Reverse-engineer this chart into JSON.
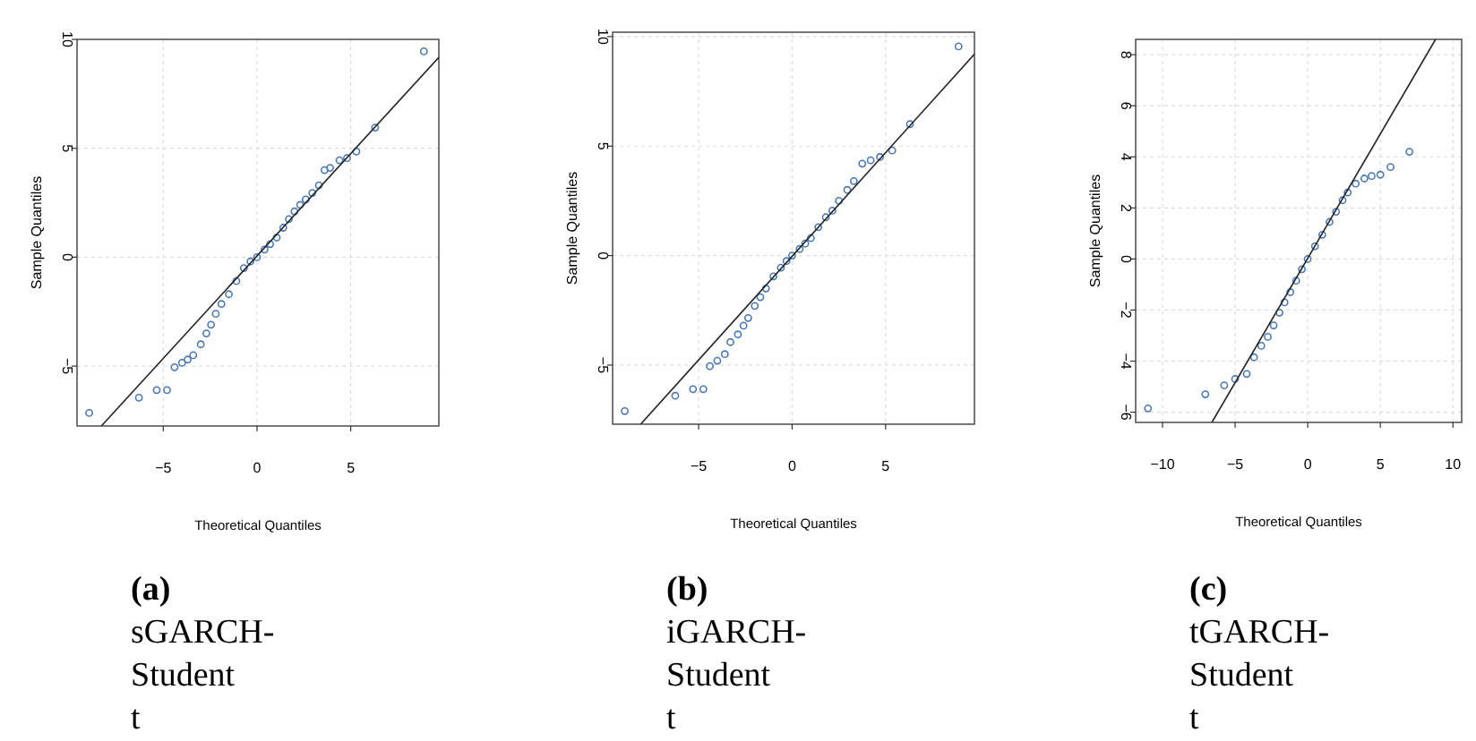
{
  "chart_data": [
    {
      "type": "scatter",
      "title": "(a)",
      "subtitle": "sGARCH-Student t",
      "xlabel": "Theoretical Quantiles",
      "ylabel": "Sample Quantiles",
      "xlim": [
        -9.6,
        9.7
      ],
      "ylim": [
        -7.75,
        10
      ],
      "xticks": [
        -5,
        0,
        5
      ],
      "yticks": [
        -5,
        0,
        5,
        10
      ],
      "grid": true,
      "series": [
        {
          "marker": "circle",
          "color": "#4a78b5",
          "x": [
            -8.95,
            -6.3,
            -5.35,
            -4.8,
            -4.4,
            -4.0,
            -3.7,
            -3.4,
            -3.0,
            -2.7,
            -2.45,
            -2.2,
            -1.9,
            -1.5,
            -1.1,
            -0.7,
            -0.35,
            0,
            0.4,
            0.7,
            1.05,
            1.4,
            1.7,
            2,
            2.3,
            2.6,
            2.95,
            3.3,
            3.6,
            3.9,
            4.4,
            4.8,
            5.3,
            6.3,
            8.9
          ],
          "values": [
            -7.15,
            -6.45,
            -6.1,
            -6.1,
            -5.05,
            -4.85,
            -4.7,
            -4.5,
            -4.0,
            -3.5,
            -3.1,
            -2.6,
            -2.15,
            -1.7,
            -1.1,
            -0.5,
            -0.2,
            0,
            0.35,
            0.6,
            0.9,
            1.35,
            1.75,
            2.1,
            2.4,
            2.65,
            2.95,
            3.3,
            4.0,
            4.1,
            4.45,
            4.55,
            4.85,
            5.95,
            9.45
          ]
        },
        {
          "type": "line",
          "color": "#222222",
          "x": [
            -8.3,
            9.7
          ],
          "values": [
            -7.75,
            9.18
          ]
        }
      ]
    },
    {
      "type": "scatter",
      "title": "(b)",
      "subtitle": "iGARCH-Student t",
      "xlabel": "Theoretical Quantiles",
      "ylabel": "Sample Quantiles",
      "xlim": [
        -9.6,
        9.75
      ],
      "ylim": [
        -7.7,
        10.2
      ],
      "xticks": [
        -5,
        0,
        5
      ],
      "yticks": [
        -5,
        0,
        5,
        10
      ],
      "grid": true,
      "series": [
        {
          "marker": "circle",
          "color": "#4a78b5",
          "x": [
            -8.95,
            -6.25,
            -5.3,
            -4.75,
            -4.4,
            -4.0,
            -3.6,
            -3.3,
            -2.9,
            -2.6,
            -2.35,
            -2.0,
            -1.7,
            -1.4,
            -1.0,
            -0.6,
            -0.3,
            0,
            0.4,
            0.7,
            1.0,
            1.4,
            1.8,
            2.15,
            2.5,
            2.95,
            3.3,
            3.75,
            4.2,
            4.7,
            5.35,
            6.3,
            8.9
          ],
          "values": [
            -7.1,
            -6.4,
            -6.1,
            -6.1,
            -5.05,
            -4.8,
            -4.5,
            -3.95,
            -3.6,
            -3.2,
            -2.85,
            -2.3,
            -1.9,
            -1.5,
            -0.95,
            -0.55,
            -0.25,
            0,
            0.3,
            0.55,
            0.8,
            1.3,
            1.75,
            2.05,
            2.5,
            3.0,
            3.4,
            4.2,
            4.35,
            4.5,
            4.8,
            6.0,
            9.55
          ]
        },
        {
          "type": "line",
          "color": "#222222",
          "x": [
            -8.1,
            9.75
          ],
          "values": [
            -7.7,
            9.2
          ]
        }
      ]
    },
    {
      "type": "scatter",
      "title": "(c)",
      "subtitle": "tGARCH-Student t",
      "xlabel": "Theoretical Quantiles",
      "ylabel": "Sample Quantiles",
      "xlim": [
        -11.85,
        10.6
      ],
      "ylim": [
        -6.4,
        8.6
      ],
      "xticks": [
        -10,
        -5,
        0,
        5,
        10
      ],
      "yticks": [
        -6,
        -4,
        -2,
        0,
        2,
        4,
        6,
        8
      ],
      "grid": true,
      "series": [
        {
          "marker": "circle",
          "color": "#4a78b5",
          "x": [
            -11,
            -7.05,
            -5.75,
            -5,
            -4.2,
            -3.7,
            -3.2,
            -2.75,
            -2.35,
            -1.95,
            -1.6,
            -1.2,
            -0.8,
            -0.4,
            0,
            0.5,
            1,
            1.5,
            1.95,
            2.4,
            2.75,
            3.3,
            3.9,
            4.4,
            5,
            5.7,
            7
          ],
          "values": [
            -5.85,
            -5.3,
            -4.95,
            -4.7,
            -4.5,
            -3.85,
            -3.4,
            -3.05,
            -2.6,
            -2.1,
            -1.7,
            -1.3,
            -0.85,
            -0.4,
            0,
            0.5,
            0.95,
            1.45,
            1.85,
            2.3,
            2.6,
            2.95,
            3.15,
            3.25,
            3.3,
            3.6,
            4.2
          ]
        },
        {
          "type": "line",
          "color": "#222222",
          "x": [
            -6.6,
            8.8
          ],
          "values": [
            -6.4,
            8.6
          ]
        }
      ]
    }
  ]
}
